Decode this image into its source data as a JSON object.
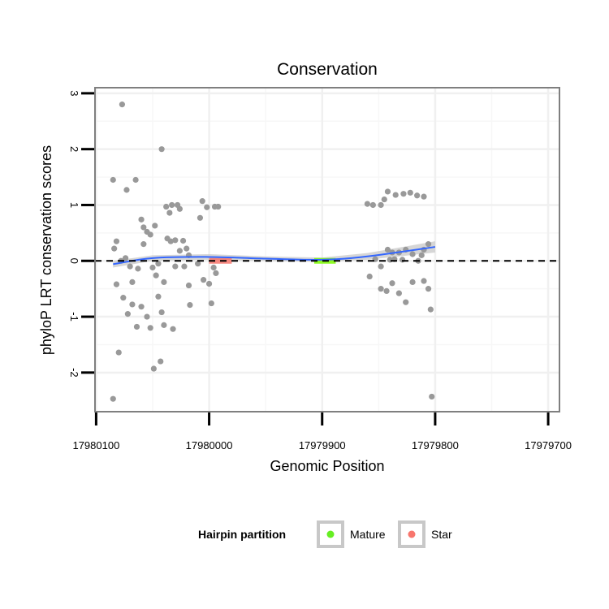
{
  "chart_data": {
    "type": "scatter",
    "title": "Conservation",
    "xlabel": "Genomic Position",
    "ylabel": "phyloP LRT conservation scores",
    "x_reversed": true,
    "xlim": [
      17980101,
      17979690
    ],
    "ylim": [
      -2.7,
      3.1
    ],
    "x_ticks": [
      17980100,
      17980000,
      17979900,
      17979800,
      17979700
    ],
    "x_tick_labels": [
      "17980100",
      "17980000",
      "17979900",
      "17979800",
      "17979700"
    ],
    "y_ticks": [
      -2,
      -1,
      0,
      1,
      2,
      3
    ],
    "y_tick_labels": [
      "-2",
      "-1",
      "0",
      "1",
      "2",
      "3"
    ],
    "grid": true,
    "reference_line": {
      "y": 0,
      "style": "dashed"
    },
    "points_color": "#999999",
    "points": [
      [
        17980085,
        -2.47
      ],
      [
        17980077,
        2.8
      ],
      [
        17980085,
        1.45
      ],
      [
        17980073,
        1.27
      ],
      [
        17980065,
        1.45
      ],
      [
        17980080,
        -1.64
      ],
      [
        17980042,
        2.0
      ],
      [
        17980082,
        0.35
      ],
      [
        17980084,
        0.22
      ],
      [
        17980078,
        0.0
      ],
      [
        17980070,
        -0.1
      ],
      [
        17980068,
        -0.38
      ],
      [
        17980063,
        -0.14
      ],
      [
        17980060,
        0.74
      ],
      [
        17980058,
        0.6
      ],
      [
        17980055,
        0.52
      ],
      [
        17980052,
        0.47
      ],
      [
        17980048,
        0.63
      ],
      [
        17980045,
        -0.05
      ],
      [
        17980050,
        -0.12
      ],
      [
        17980047,
        -0.26
      ],
      [
        17980082,
        -0.42
      ],
      [
        17980076,
        -0.66
      ],
      [
        17980072,
        -0.95
      ],
      [
        17980068,
        -0.78
      ],
      [
        17980064,
        -1.18
      ],
      [
        17980060,
        -0.82
      ],
      [
        17980055,
        -1.0
      ],
      [
        17980052,
        -1.2
      ],
      [
        17980045,
        -0.64
      ],
      [
        17980042,
        -0.92
      ],
      [
        17980040,
        -1.15
      ],
      [
        17980032,
        -1.22
      ],
      [
        17980043,
        -1.8
      ],
      [
        17980049,
        -1.93
      ],
      [
        17980038,
        0.97
      ],
      [
        17980035,
        0.86
      ],
      [
        17980033,
        1.0
      ],
      [
        17980028,
        1.0
      ],
      [
        17980026,
        0.93
      ],
      [
        17980037,
        0.4
      ],
      [
        17980034,
        0.35
      ],
      [
        17980030,
        0.37
      ],
      [
        17980023,
        0.36
      ],
      [
        17980020,
        0.22
      ],
      [
        17980018,
        0.1
      ],
      [
        17980026,
        0.18
      ],
      [
        17980022,
        -0.1
      ],
      [
        17980018,
        -0.44
      ],
      [
        17980017,
        -0.79
      ],
      [
        17980008,
        0.77
      ],
      [
        17980006,
        1.07
      ],
      [
        17980002,
        0.96
      ],
      [
        17979995,
        0.97
      ],
      [
        17979992,
        0.97
      ],
      [
        17980005,
        -0.34
      ],
      [
        17980000,
        -0.41
      ],
      [
        17979996,
        -0.12
      ],
      [
        17979994,
        -0.22
      ],
      [
        17979998,
        -0.76
      ],
      [
        17980040,
        -0.38
      ],
      [
        17980058,
        0.3
      ],
      [
        17980074,
        0.05
      ],
      [
        17980030,
        -0.1
      ],
      [
        17980010,
        -0.05
      ],
      [
        17979860,
        1.02
      ],
      [
        17979855,
        1.0
      ],
      [
        17979848,
        1.0
      ],
      [
        17979845,
        1.1
      ],
      [
        17979842,
        1.24
      ],
      [
        17979835,
        1.18
      ],
      [
        17979828,
        1.2
      ],
      [
        17979822,
        1.22
      ],
      [
        17979816,
        1.17
      ],
      [
        17979810,
        1.15
      ],
      [
        17979853,
        0.03
      ],
      [
        17979848,
        -0.1
      ],
      [
        17979842,
        0.2
      ],
      [
        17979838,
        0.15
      ],
      [
        17979832,
        0.15
      ],
      [
        17979826,
        0.2
      ],
      [
        17979820,
        0.12
      ],
      [
        17979815,
        0.0
      ],
      [
        17979810,
        0.2
      ],
      [
        17979858,
        -0.28
      ],
      [
        17979848,
        -0.5
      ],
      [
        17979843,
        -0.54
      ],
      [
        17979838,
        -0.4
      ],
      [
        17979832,
        -0.58
      ],
      [
        17979826,
        -0.74
      ],
      [
        17979820,
        -0.38
      ],
      [
        17979810,
        -0.36
      ],
      [
        17979806,
        -0.5
      ],
      [
        17979804,
        -0.87
      ],
      [
        17979803,
        -2.43
      ],
      [
        17979840,
        0.02
      ],
      [
        17979836,
        0.03
      ],
      [
        17979829,
        0.02
      ],
      [
        17979812,
        0.1
      ],
      [
        17979806,
        0.3
      ]
    ],
    "smooth": {
      "color": "#3366ff",
      "band_color": "#c8c8c8",
      "x": [
        17980085,
        17980050,
        17980000,
        17979950,
        17979900,
        17979860,
        17979800
      ],
      "y": [
        -0.06,
        0.05,
        0.07,
        0.04,
        0.02,
        0.08,
        0.25
      ],
      "band_half_width": [
        0.06,
        0.05,
        0.05,
        0.04,
        0.04,
        0.06,
        0.1
      ]
    },
    "hairpin_partitions": [
      {
        "name": "Star",
        "color": "#f8766d",
        "x": [
          17980000,
          17979980
        ]
      },
      {
        "name": "Mature",
        "color": "#7cfc00",
        "x": [
          17979907,
          17979888
        ]
      }
    ],
    "legend": {
      "title": "Hairpin partition",
      "placement": "bottom",
      "entries": [
        {
          "label": "Mature",
          "color": "#66ee22"
        },
        {
          "label": "Star",
          "color": "#f8766d"
        }
      ]
    }
  }
}
